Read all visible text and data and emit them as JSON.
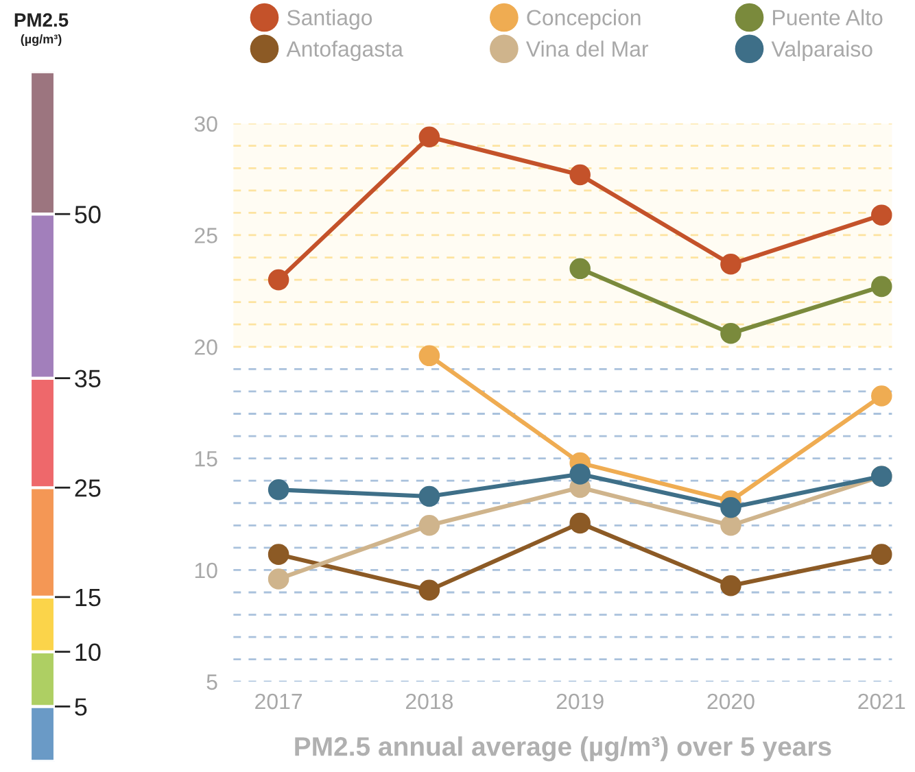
{
  "chart_data": [
    {
      "type": "bar",
      "stacked": true,
      "title": "PM2.5",
      "subtitle": "(µg/m³)",
      "categories": [
        null
      ],
      "ylim": [
        0,
        63
      ],
      "yticks": [
        5,
        10,
        15,
        25,
        35,
        50
      ],
      "series": [
        {
          "color": "#6a9ac6",
          "values": [
            5
          ]
        },
        {
          "color": "#aecf63",
          "values": [
            5
          ]
        },
        {
          "color": "#fbd44a",
          "values": [
            5
          ]
        },
        {
          "color": "#f49755",
          "values": [
            10
          ]
        },
        {
          "color": "#ee686b",
          "values": [
            10
          ]
        },
        {
          "color": "#a27fbb",
          "values": [
            15
          ]
        },
        {
          "color": "#9c757f",
          "values": [
            13
          ]
        }
      ]
    },
    {
      "type": "line",
      "xlabel": "PM2.5 annual average (µg/m³) over 5 years",
      "categories": [
        "2017",
        "2018",
        "2019",
        "2020",
        "2021"
      ],
      "ylim": [
        5,
        30
      ],
      "yticks": [
        5,
        {
          "value": 6,
          "label": null
        },
        {
          "value": 7,
          "label": null
        },
        {
          "value": 8,
          "label": null
        },
        {
          "value": 9,
          "label": null
        },
        10,
        {
          "value": 11,
          "label": null
        },
        {
          "value": 12,
          "label": null
        },
        {
          "value": 13,
          "label": null
        },
        {
          "value": 14,
          "label": null
        },
        15,
        {
          "value": 16,
          "label": null
        },
        {
          "value": 17,
          "label": null
        },
        {
          "value": 18,
          "label": null
        },
        {
          "value": 19,
          "label": null
        },
        20,
        {
          "value": 21,
          "label": null
        },
        {
          "value": 22,
          "label": null
        },
        {
          "value": 23,
          "label": null
        },
        {
          "value": 24,
          "label": null
        },
        25,
        {
          "value": 26,
          "label": null
        },
        {
          "value": 27,
          "label": null
        },
        {
          "value": 28,
          "label": null
        },
        {
          "value": 29,
          "label": null
        },
        30
      ],
      "marker": "circle",
      "line_style": "solid",
      "legend": "top",
      "grid": "y",
      "series": [
        {
          "name": "Santiago",
          "color": "#c4522a",
          "values": [
            23.0,
            29.4,
            27.7,
            23.7,
            25.9
          ]
        },
        {
          "name": "Antofagasta",
          "color": "#8c5a25",
          "values": [
            10.7,
            9.1,
            12.1,
            9.3,
            10.7
          ]
        },
        {
          "name": "Concepcion",
          "color": "#efac52",
          "values": [
            null,
            19.6,
            14.8,
            13.1,
            17.8
          ]
        },
        {
          "name": "Vina del Mar",
          "color": "#cfb48c",
          "values": [
            9.6,
            12.0,
            13.7,
            12.0,
            14.2
          ]
        },
        {
          "name": "Puente Alto",
          "color": "#7a8a3c",
          "values": [
            null,
            null,
            23.5,
            20.6,
            22.7
          ]
        },
        {
          "name": "Valparaiso",
          "color": "#3e6f88",
          "values": [
            13.6,
            13.3,
            14.3,
            12.8,
            14.2
          ]
        }
      ],
      "bands": [
        {
          "axis": "y",
          "from": 20,
          "to": 30,
          "color": "#fde3a0"
        }
      ]
    }
  ]
}
